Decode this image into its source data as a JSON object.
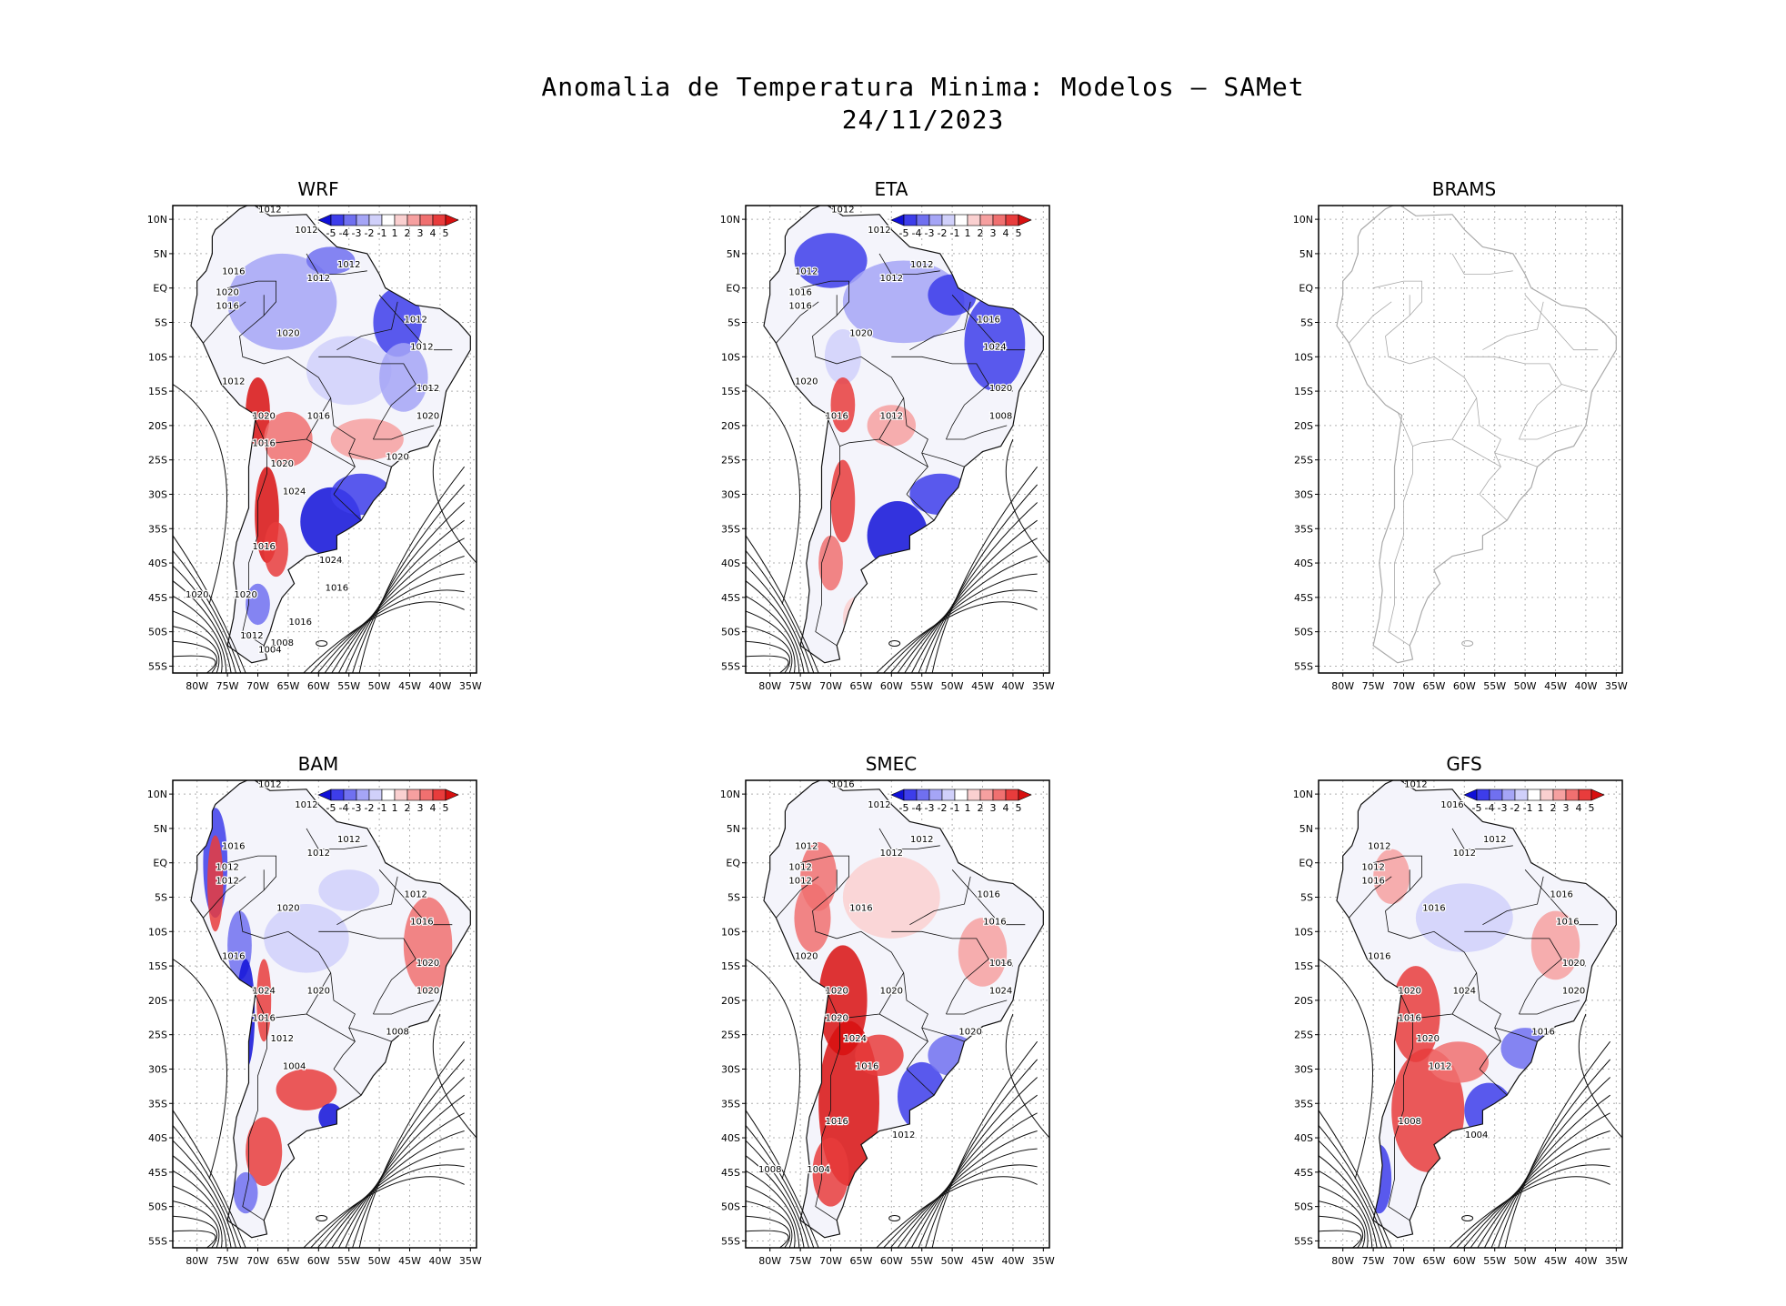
{
  "title": {
    "line1": "Anomalia de Temperatura Minima: Modelos — SAMet",
    "line2": "24/11/2023"
  },
  "axes": {
    "lat_labels": [
      "10N",
      "5N",
      "EQ",
      "5S",
      "10S",
      "15S",
      "20S",
      "25S",
      "30S",
      "35S",
      "40S",
      "45S",
      "50S",
      "55S"
    ],
    "lon_labels": [
      "80W",
      "75W",
      "70W",
      "65W",
      "60W",
      "55W",
      "50W",
      "45W",
      "40W",
      "35W"
    ]
  },
  "colorbar": {
    "labels": [
      "-5",
      "-4",
      "-3",
      "-2",
      "-1",
      "1",
      "2",
      "3",
      "4",
      "5"
    ],
    "colors": [
      "#1010d8",
      "#3d3dea",
      "#7070f0",
      "#a5a5f6",
      "#d0d0fa",
      "#ffffff",
      "#fad0d0",
      "#f6a0a0",
      "#f07070",
      "#e83c3c",
      "#d81010"
    ]
  },
  "panels": [
    {
      "id": "wrf",
      "name": "WRF",
      "has_data": true,
      "isobars": [
        "1012",
        "1012",
        "1016",
        "1012",
        "1012",
        "1020",
        "1016",
        "1020",
        "1012",
        "1012",
        "1012",
        "1012",
        "1020",
        "1016",
        "1020",
        "1016",
        "1020",
        "1020",
        "1024",
        "1016",
        "1024",
        "1020",
        "1020",
        "1016",
        "1016",
        "1012",
        "1008",
        "1004"
      ]
    },
    {
      "id": "eta",
      "name": "ETA",
      "has_data": true,
      "isobars": [
        "1012",
        "1012",
        "1012",
        "1012",
        "1012",
        "1016",
        "1016",
        "1020",
        "1016",
        "1024",
        "1020",
        "1020",
        "1016",
        "1012",
        "1008"
      ]
    },
    {
      "id": "brams",
      "name": "BRAMS",
      "has_data": false,
      "isobars": []
    },
    {
      "id": "bam",
      "name": "BAM",
      "has_data": true,
      "isobars": [
        "1012",
        "1012",
        "1016",
        "1012",
        "1012",
        "1012",
        "1012",
        "1020",
        "1012",
        "1016",
        "1020",
        "1016",
        "1024",
        "1020",
        "1020",
        "1016",
        "1012",
        "1008",
        "1004"
      ]
    },
    {
      "id": "smec",
      "name": "SMEC",
      "has_data": true,
      "isobars": [
        "1016",
        "1012",
        "1012",
        "1012",
        "1012",
        "1012",
        "1012",
        "1016",
        "1016",
        "1016",
        "1016",
        "1020",
        "1020",
        "1020",
        "1024",
        "1020",
        "1024",
        "1020",
        "1016",
        "1016",
        "1012",
        "1008",
        "1004"
      ]
    },
    {
      "id": "gfs",
      "name": "GFS",
      "has_data": true,
      "isobars": [
        "1012",
        "1016",
        "1012",
        "1012",
        "1012",
        "1012",
        "1016",
        "1016",
        "1016",
        "1016",
        "1020",
        "1016",
        "1020",
        "1024",
        "1020",
        "1016",
        "1020",
        "1016",
        "1012",
        "1008",
        "1004"
      ]
    }
  ]
}
